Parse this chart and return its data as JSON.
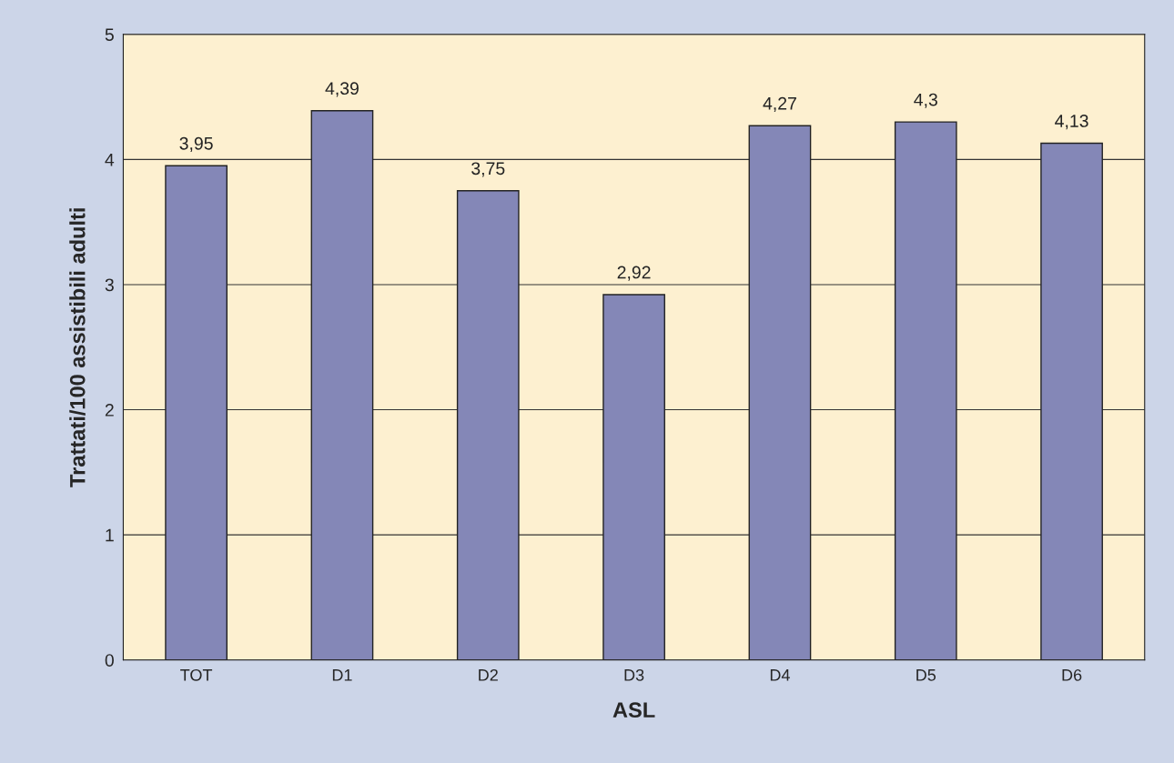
{
  "chart_data": {
    "type": "bar",
    "xlabel": "ASL",
    "ylabel": "Trattati/100 assistibili adulti",
    "categories": [
      "TOT",
      "D1",
      "D2",
      "D3",
      "D4",
      "D5",
      "D6"
    ],
    "values": [
      3.95,
      4.39,
      3.75,
      2.92,
      4.27,
      4.3,
      4.13
    ],
    "value_labels": [
      "3,95",
      "4,39",
      "3,75",
      "2,92",
      "4,27",
      "4,3",
      "4,13"
    ],
    "color": "#7b80c0",
    "ylim": [
      0,
      5
    ],
    "yticks": [
      0,
      1,
      2,
      3,
      4,
      5
    ],
    "grid": "y",
    "legend": false
  }
}
